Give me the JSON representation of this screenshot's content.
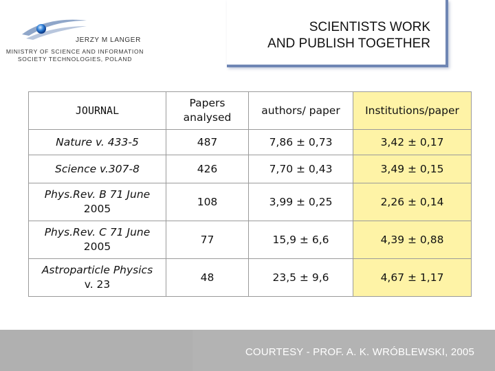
{
  "header": {
    "author": "JERZY M LANGER",
    "ministry_line1": "MINISTRY OF SCIENCE AND INFORMATION",
    "ministry_line2": "SOCIETY TECHNOLOGIES,  POLAND",
    "title_line1": "SCIENTISTS WORK",
    "title_line2": "AND PUBLISH TOGETHER"
  },
  "table": {
    "headers": {
      "journal": "JOURNAL",
      "papers_line1": "Papers",
      "papers_line2": "analysed",
      "authors": "authors/ paper",
      "institutions": "Institutions/paper"
    },
    "rows": [
      {
        "journal_line1": "Nature v. 433-5",
        "journal_line2": "",
        "papers": "487",
        "authors": "7,86 ± 0,73",
        "institutions": "3,42 ± 0,17"
      },
      {
        "journal_line1": "Science v.307-8",
        "journal_line2": "",
        "papers": "426",
        "authors": "7,70 ± 0,43",
        "institutions": "3,49 ± 0,15"
      },
      {
        "journal_line1": "Phys.Rev. B 71 June",
        "journal_line2": "2005",
        "papers": "108",
        "authors": "3,99 ± 0,25",
        "institutions": "2,26 ± 0,14"
      },
      {
        "journal_line1": "Phys.Rev. C 71 June",
        "journal_line2": "2005",
        "papers": "77",
        "authors": "15,9 ± 6,6",
        "institutions": "4,39 ± 0,88"
      },
      {
        "journal_line1": "Astroparticle Physics",
        "journal_line2": "v. 23",
        "papers": "48",
        "authors": "23,5 ± 9,6",
        "institutions": "4,67 ± 1,17"
      }
    ]
  },
  "footer": {
    "courtesy": "COURTESY - PROF. A. K. WRÓBLEWSKI, 2005"
  },
  "colors": {
    "institutions_highlight": "#fef3a6",
    "title_border": "#6f86b4",
    "footer_bg": "#b3b3b3"
  }
}
